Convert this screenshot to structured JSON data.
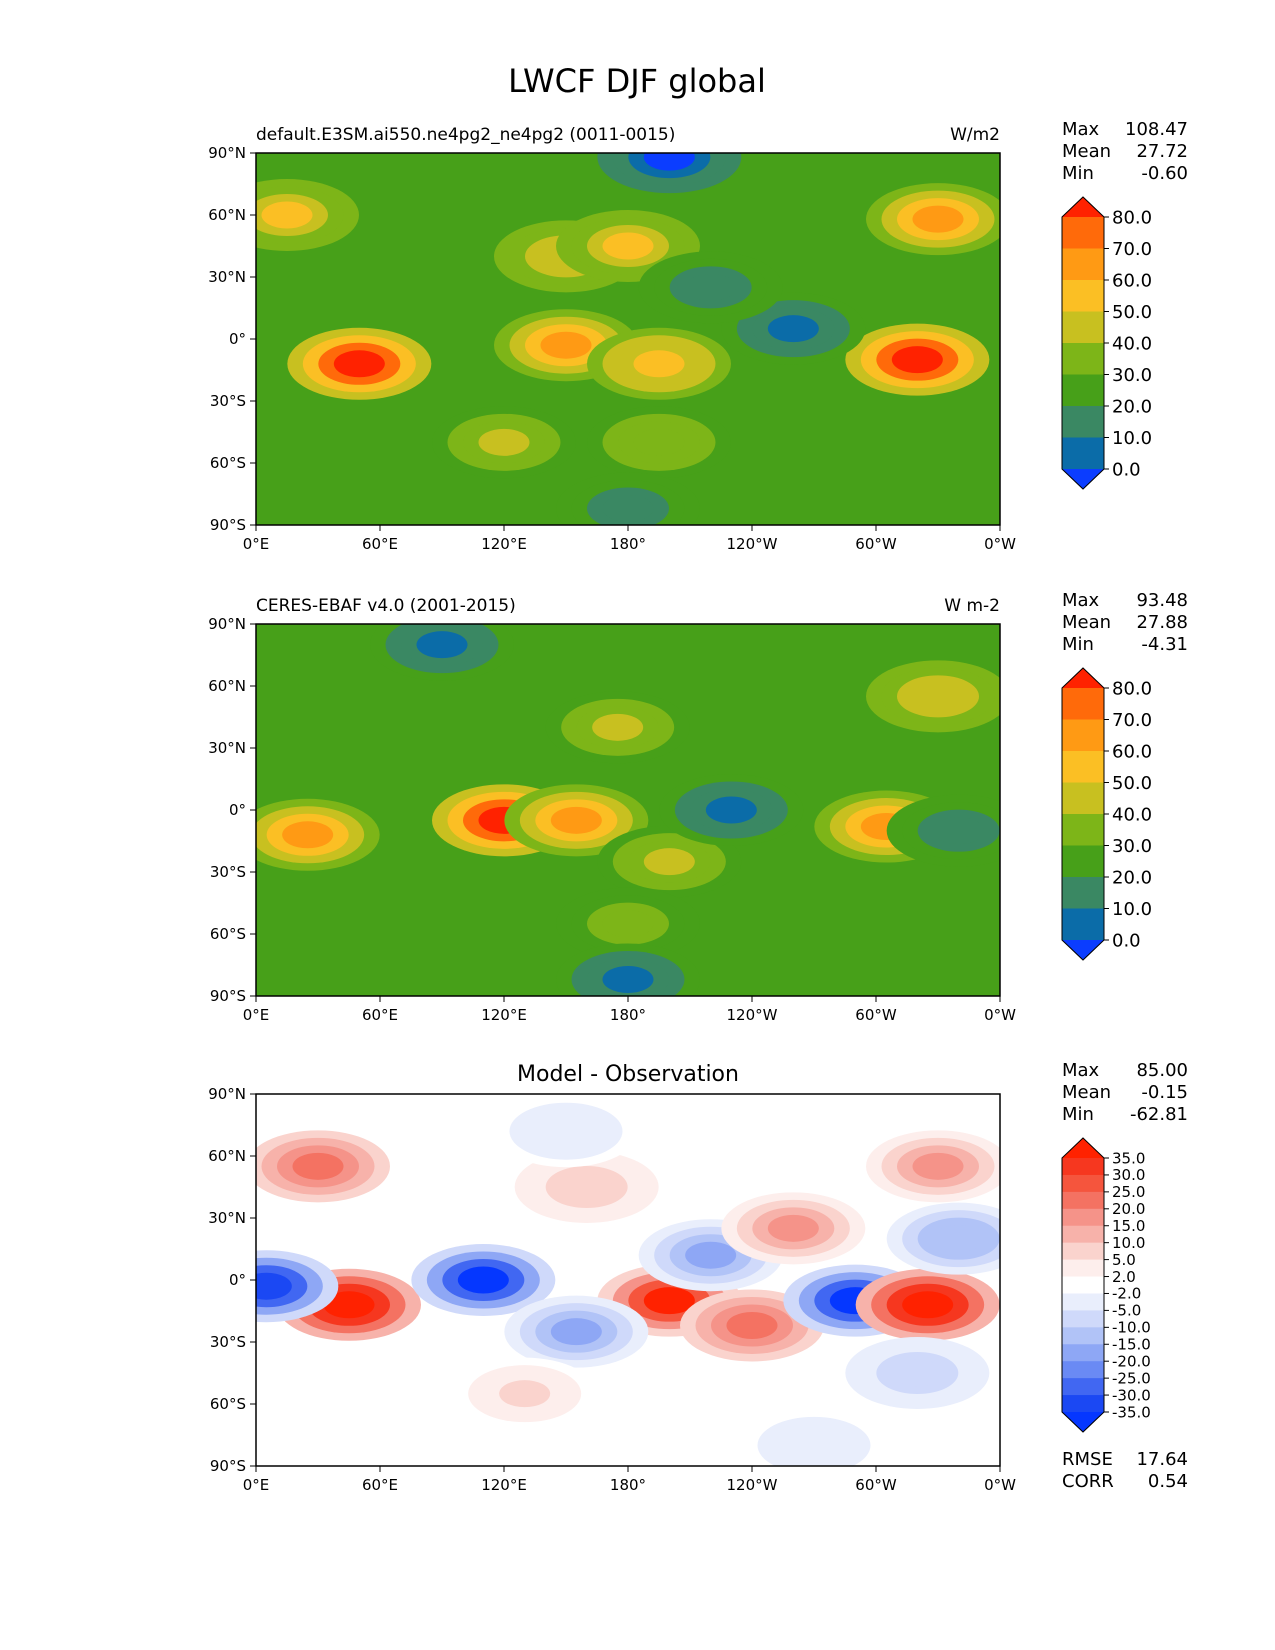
{
  "title": "LWCF DJF global",
  "chart_data": [
    {
      "type": "heatmap",
      "panel": "test",
      "left_title": "default.E3SM.ai550.ne4pg2_ne4pg2 (0011-0015)",
      "center_title": "",
      "right_title": "W/m2",
      "x_ticks": [
        "0°E",
        "60°E",
        "120°E",
        "180°",
        "120°W",
        "60°W",
        "0°W"
      ],
      "y_ticks": [
        "90°N",
        "60°N",
        "30°N",
        "0°",
        "30°S",
        "60°S",
        "90°S"
      ],
      "xlim": [
        0,
        360
      ],
      "ylim": [
        -90,
        90
      ],
      "stats": [
        {
          "label": "Max",
          "value": "108.47"
        },
        {
          "label": "Mean",
          "value": "27.72"
        },
        {
          "label": "Min",
          "value": "-0.60"
        }
      ],
      "colorbar": {
        "levels": [
          "80.0",
          "70.0",
          "60.0",
          "50.0",
          "40.0",
          "30.0",
          "20.0",
          "10.0",
          "0.0"
        ],
        "colors": [
          "#ff2200",
          "#ff6a0a",
          "#ff9a14",
          "#fbbf24",
          "#c8c020",
          "#7db518",
          "#47a019",
          "#3a8863",
          "#0b6ca8",
          "#0b3dff"
        ]
      },
      "field": [
        {
          "lon": 50,
          "lat": -12,
          "value": 85
        },
        {
          "lon": 150,
          "lat": -3,
          "value": 65
        },
        {
          "lon": 195,
          "lat": -12,
          "value": 58
        },
        {
          "lon": 320,
          "lat": -10,
          "value": 85
        },
        {
          "lon": 150,
          "lat": 40,
          "value": 45
        },
        {
          "lon": 180,
          "lat": 45,
          "value": 50
        },
        {
          "lon": 330,
          "lat": 58,
          "value": 60
        },
        {
          "lon": 15,
          "lat": 60,
          "value": 50
        },
        {
          "lon": 260,
          "lat": 5,
          "value": 8
        },
        {
          "lon": 220,
          "lat": 25,
          "value": 15
        },
        {
          "lon": 120,
          "lat": -50,
          "value": 40
        },
        {
          "lon": 195,
          "lat": -50,
          "value": 35
        },
        {
          "lon": 200,
          "lat": 88,
          "value": -0.6
        },
        {
          "lon": 180,
          "lat": -82,
          "value": 15
        }
      ]
    },
    {
      "type": "heatmap",
      "panel": "reference",
      "left_title": "CERES-EBAF v4.0 (2001-2015)",
      "center_title": "",
      "right_title": "W m-2",
      "x_ticks": [
        "0°E",
        "60°E",
        "120°E",
        "180°",
        "120°W",
        "60°W",
        "0°W"
      ],
      "y_ticks": [
        "90°N",
        "60°N",
        "30°N",
        "0°",
        "30°S",
        "60°S",
        "90°S"
      ],
      "xlim": [
        0,
        360
      ],
      "ylim": [
        -90,
        90
      ],
      "stats": [
        {
          "label": "Max",
          "value": "93.48"
        },
        {
          "label": "Mean",
          "value": "27.88"
        },
        {
          "label": "Min",
          "value": "-4.31"
        }
      ],
      "colorbar": {
        "levels": [
          "80.0",
          "70.0",
          "60.0",
          "50.0",
          "40.0",
          "30.0",
          "20.0",
          "10.0",
          "0.0"
        ],
        "colors": [
          "#ff2200",
          "#ff6a0a",
          "#ff9a14",
          "#fbbf24",
          "#c8c020",
          "#7db518",
          "#47a019",
          "#3a8863",
          "#0b6ca8",
          "#0b3dff"
        ]
      },
      "field": [
        {
          "lon": 120,
          "lat": -5,
          "value": 85
        },
        {
          "lon": 155,
          "lat": -5,
          "value": 65
        },
        {
          "lon": 25,
          "lat": -12,
          "value": 62
        },
        {
          "lon": 305,
          "lat": -8,
          "value": 65
        },
        {
          "lon": 175,
          "lat": 40,
          "value": 42
        },
        {
          "lon": 330,
          "lat": 55,
          "value": 48
        },
        {
          "lon": 200,
          "lat": -25,
          "value": 40
        },
        {
          "lon": 230,
          "lat": 0,
          "value": 8
        },
        {
          "lon": 340,
          "lat": -10,
          "value": 15
        },
        {
          "lon": 180,
          "lat": -55,
          "value": 32
        },
        {
          "lon": 90,
          "lat": 80,
          "value": 8
        },
        {
          "lon": 180,
          "lat": -82,
          "value": 5
        }
      ]
    },
    {
      "type": "heatmap",
      "panel": "difference",
      "left_title": "",
      "center_title": "Model - Observation",
      "right_title": "",
      "x_ticks": [
        "0°E",
        "60°E",
        "120°E",
        "180°",
        "120°W",
        "60°W",
        "0°W"
      ],
      "y_ticks": [
        "90°N",
        "60°N",
        "30°N",
        "0°",
        "30°S",
        "60°S",
        "90°S"
      ],
      "xlim": [
        0,
        360
      ],
      "ylim": [
        -90,
        90
      ],
      "stats": [
        {
          "label": "Max",
          "value": "85.00"
        },
        {
          "label": "Mean",
          "value": "-0.15"
        },
        {
          "label": "Min",
          "value": "-62.81"
        }
      ],
      "metrics": [
        {
          "label": "RMSE",
          "value": "17.64"
        },
        {
          "label": "CORR",
          "value": "0.54"
        }
      ],
      "colorbar": {
        "levels": [
          "35.0",
          "30.0",
          "25.0",
          "20.0",
          "15.0",
          "10.0",
          "5.0",
          "2.0",
          "-2.0",
          "-5.0",
          "-10.0",
          "-15.0",
          "-20.0",
          "-25.0",
          "-30.0",
          "-35.0"
        ],
        "colors": [
          "#ff2200",
          "#f6371f",
          "#f5553d",
          "#f47262",
          "#f59389",
          "#f7b2aa",
          "#fad3cd",
          "#fdeeec",
          "#ffffff",
          "#e9eefc",
          "#cfd9fa",
          "#b1c3f7",
          "#8ea7f5",
          "#6a8af4",
          "#4167f2",
          "#1b48f3",
          "#0537ff"
        ]
      },
      "field": [
        {
          "lon": 45,
          "lat": -12,
          "value": 40
        },
        {
          "lon": 110,
          "lat": 0,
          "value": -40
        },
        {
          "lon": 200,
          "lat": -10,
          "value": 38
        },
        {
          "lon": 240,
          "lat": -22,
          "value": 20
        },
        {
          "lon": 290,
          "lat": -10,
          "value": -40
        },
        {
          "lon": 325,
          "lat": -12,
          "value": 40
        },
        {
          "lon": 5,
          "lat": -3,
          "value": -35
        },
        {
          "lon": 220,
          "lat": 12,
          "value": -20
        },
        {
          "lon": 155,
          "lat": -25,
          "value": -20
        },
        {
          "lon": 30,
          "lat": 55,
          "value": 20
        },
        {
          "lon": 330,
          "lat": 55,
          "value": 15
        },
        {
          "lon": 160,
          "lat": 45,
          "value": 8
        },
        {
          "lon": 150,
          "lat": 72,
          "value": -5
        },
        {
          "lon": 260,
          "lat": 25,
          "value": 15
        },
        {
          "lon": 270,
          "lat": -80,
          "value": -5
        },
        {
          "lon": 340,
          "lat": 20,
          "value": -15
        },
        {
          "lon": 320,
          "lat": -45,
          "value": -10
        },
        {
          "lon": 130,
          "lat": -55,
          "value": 5
        }
      ]
    }
  ]
}
